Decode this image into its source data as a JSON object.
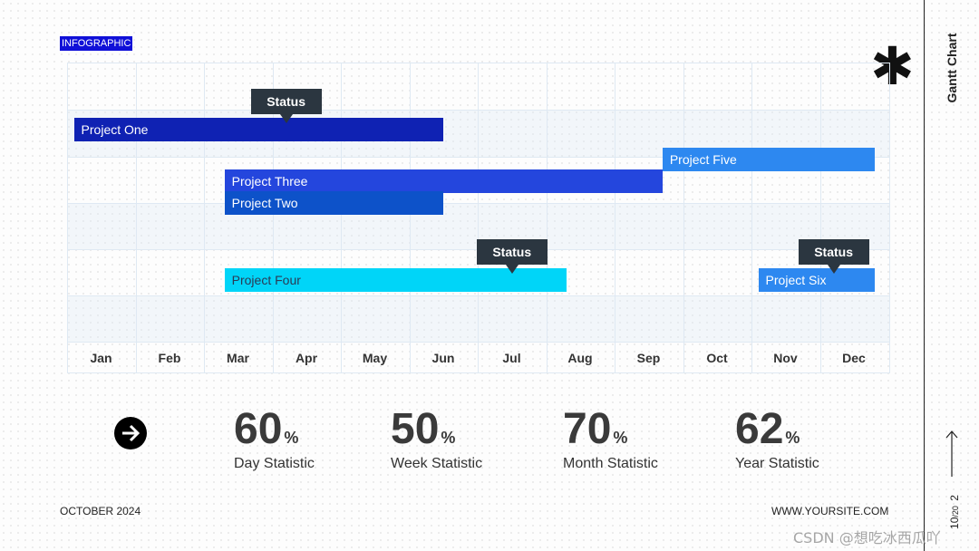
{
  "header": {
    "tag": "INFOGRAPHIC"
  },
  "sidebar": {
    "title": "Gantt Chart",
    "page_current": "10",
    "page_separator": "/",
    "page_total": "20",
    "page_count": "2"
  },
  "chart_data": {
    "type": "gantt",
    "months": [
      "Jan",
      "Feb",
      "Mar",
      "Apr",
      "May",
      "Jun",
      "Jul",
      "Aug",
      "Sep",
      "Oct",
      "Nov",
      "Dec"
    ],
    "tasks": [
      {
        "name": "Project One",
        "start": 0.1,
        "end": 5.5,
        "color": "#0f22b3",
        "text_color": "#ffffff"
      },
      {
        "name": "Project Five",
        "start": 8.7,
        "end": 11.8,
        "color": "#2d88f0",
        "text_color": "#ffffff"
      },
      {
        "name": "Project Three",
        "start": 2.3,
        "end": 8.7,
        "color": "#2446dd",
        "text_color": "#ffffff"
      },
      {
        "name": "Project Two",
        "start": 2.3,
        "end": 5.5,
        "color": "#0d52c9",
        "text_color": "#ffffff"
      },
      {
        "name": "Project Four",
        "start": 2.3,
        "end": 7.3,
        "color": "#00d5f8",
        "text_color": "#2b3a55"
      },
      {
        "name": "Project Six",
        "start": 10.1,
        "end": 11.8,
        "color": "#2d88f0",
        "text_color": "#ffffff"
      }
    ],
    "markers": [
      {
        "label": "Status",
        "at": 3.2,
        "task": "Project One"
      },
      {
        "label": "Status",
        "at": 6.5,
        "task": "Project Four"
      },
      {
        "label": "Status",
        "at": 11.2,
        "task": "Project Six"
      }
    ]
  },
  "stats": [
    {
      "value": "60",
      "unit": "%",
      "label": "Day Statistic"
    },
    {
      "value": "50",
      "unit": "%",
      "label": "Week Statistic"
    },
    {
      "value": "70",
      "unit": "%",
      "label": "Month Statistic"
    },
    {
      "value": "62",
      "unit": "%",
      "label": "Year Statistic"
    }
  ],
  "footer": {
    "date": "OCTOBER 2024",
    "website": "WWW.YOURSITE.COM"
  },
  "watermark": "CSDN @想吃冰西瓜吖",
  "icons": {
    "asterisk": "asterisk-icon",
    "nav": "arrow-right-circle-icon",
    "side": "arrow-right-icon"
  }
}
